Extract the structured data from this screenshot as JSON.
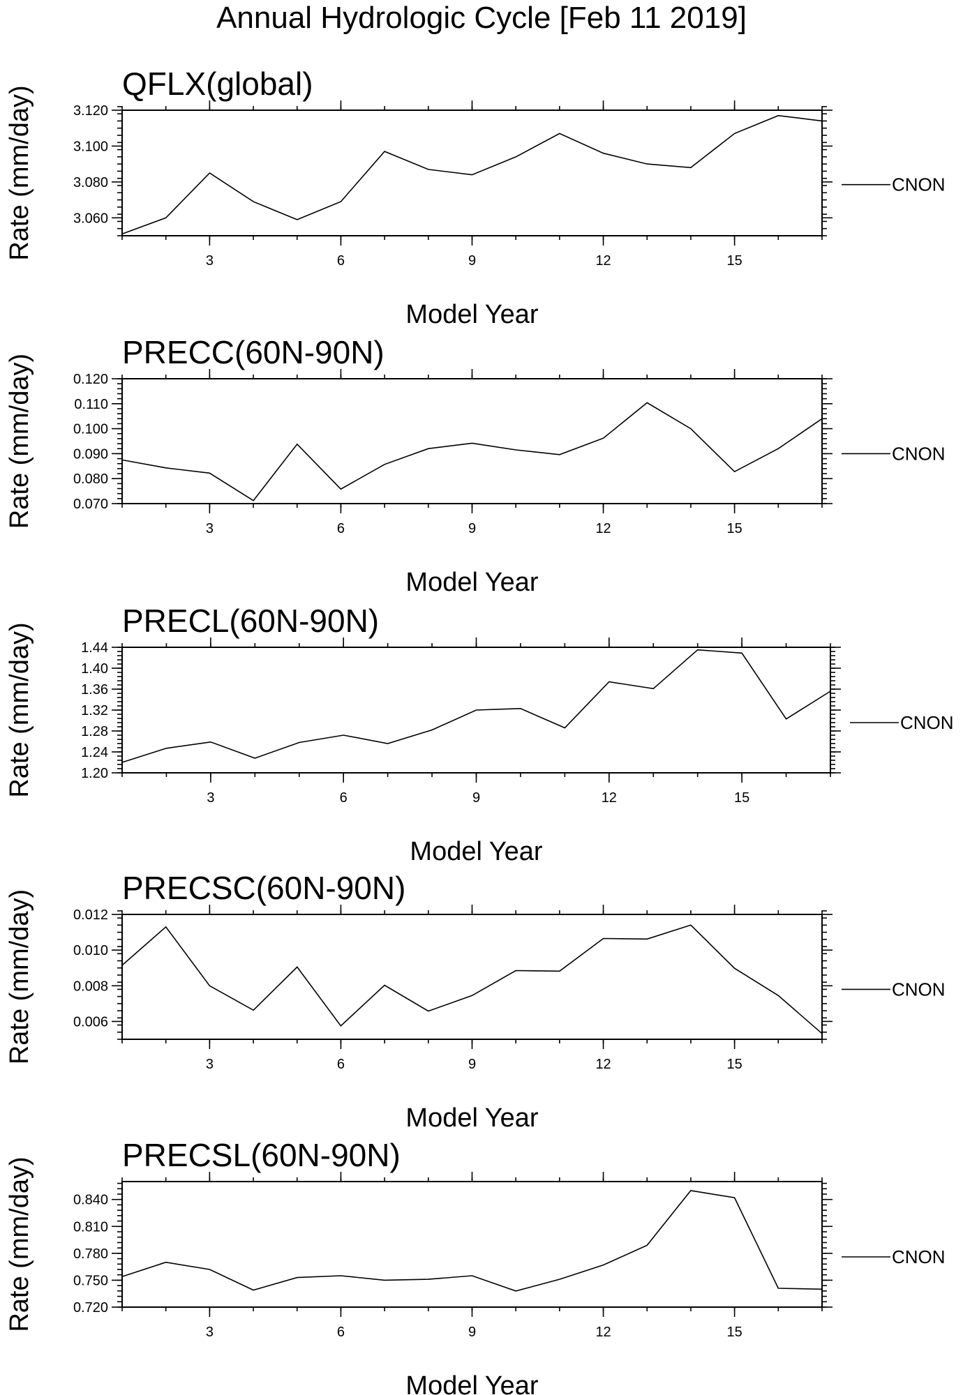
{
  "figure": {
    "title": "Annual Hydrologic Cycle [Feb 11 2019]"
  },
  "chart_data": [
    {
      "type": "line",
      "title": "QFLX(global)",
      "xlabel": "Model Year",
      "ylabel": "Rate (mm/day)",
      "x": [
        1,
        2,
        3,
        4,
        5,
        6,
        7,
        8,
        9,
        10,
        11,
        12,
        13,
        14,
        15,
        16,
        17
      ],
      "xlim": [
        1,
        17
      ],
      "ylim": [
        3.05,
        3.12
      ],
      "yticks": [
        3.06,
        3.08,
        3.1,
        3.12
      ],
      "ytick_labels": [
        "3.060",
        "3.080",
        "3.100",
        "3.120"
      ],
      "xticks": [
        3,
        6,
        9,
        12,
        15
      ],
      "xtick_labels": [
        "3",
        "6",
        "9",
        "12",
        "15"
      ],
      "grid": false,
      "legend_placement": "right",
      "legend_value": 3.0785,
      "series": [
        {
          "name": "CNON",
          "values": [
            3.051,
            3.06,
            3.085,
            3.069,
            3.059,
            3.069,
            3.097,
            3.087,
            3.084,
            3.094,
            3.107,
            3.096,
            3.09,
            3.088,
            3.107,
            3.117,
            3.114
          ]
        }
      ]
    },
    {
      "type": "line",
      "title": "PRECC(60N-90N)",
      "xlabel": "Model Year",
      "ylabel": "Rate (mm/day)",
      "x": [
        1,
        2,
        3,
        4,
        5,
        6,
        7,
        8,
        9,
        10,
        11,
        12,
        13,
        14,
        15,
        16,
        17
      ],
      "xlim": [
        1,
        17
      ],
      "ylim": [
        0.07,
        0.12
      ],
      "yticks": [
        0.07,
        0.08,
        0.09,
        0.1,
        0.11,
        0.12
      ],
      "ytick_labels": [
        "0.070",
        "0.080",
        "0.090",
        "0.100",
        "0.110",
        "0.120"
      ],
      "xticks": [
        3,
        6,
        9,
        12,
        15
      ],
      "xtick_labels": [
        "3",
        "6",
        "9",
        "12",
        "15"
      ],
      "grid": false,
      "legend_placement": "right",
      "legend_value": 0.09,
      "series": [
        {
          "name": "CNON",
          "values": [
            0.0875,
            0.0843,
            0.0822,
            0.0712,
            0.0938,
            0.0758,
            0.0857,
            0.092,
            0.0942,
            0.0915,
            0.0896,
            0.0962,
            0.1104,
            0.1,
            0.0828,
            0.092,
            0.104
          ]
        }
      ]
    },
    {
      "type": "line",
      "title": "PRECL(60N-90N)",
      "xlabel": "Model Year",
      "ylabel": "Rate (mm/day)",
      "x": [
        1,
        2,
        3,
        4,
        5,
        6,
        7,
        8,
        9,
        10,
        11,
        12,
        13,
        14,
        15,
        16,
        17
      ],
      "xlim": [
        1,
        17
      ],
      "ylim": [
        1.2,
        1.44
      ],
      "yticks": [
        1.2,
        1.24,
        1.28,
        1.32,
        1.36,
        1.4,
        1.44
      ],
      "ytick_labels": [
        "1.20",
        "1.24",
        "1.28",
        "1.32",
        "1.36",
        "1.40",
        "1.44"
      ],
      "xticks": [
        3,
        6,
        9,
        12,
        15
      ],
      "xtick_labels": [
        "3",
        "6",
        "9",
        "12",
        "15"
      ],
      "grid": false,
      "legend_placement": "right",
      "legend_value": 1.296,
      "series": [
        {
          "name": "CNON",
          "values": [
            1.22,
            1.247,
            1.259,
            1.228,
            1.258,
            1.272,
            1.256,
            1.282,
            1.32,
            1.323,
            1.286,
            1.374,
            1.361,
            1.435,
            1.429,
            1.303,
            1.356
          ]
        }
      ]
    },
    {
      "type": "line",
      "title": "PRECSC(60N-90N)",
      "xlabel": "Model Year",
      "ylabel": "Rate (mm/day)",
      "x": [
        1,
        2,
        3,
        4,
        5,
        6,
        7,
        8,
        9,
        10,
        11,
        12,
        13,
        14,
        15,
        16,
        17
      ],
      "xlim": [
        1,
        17
      ],
      "ylim": [
        0.005,
        0.012
      ],
      "yticks": [
        0.006,
        0.008,
        0.01,
        0.012
      ],
      "ytick_labels": [
        "0.006",
        "0.008",
        "0.010",
        "0.012"
      ],
      "xticks": [
        3,
        6,
        9,
        12,
        15
      ],
      "xtick_labels": [
        "3",
        "6",
        "9",
        "12",
        "15"
      ],
      "grid": false,
      "legend_placement": "right",
      "legend_value": 0.0078,
      "series": [
        {
          "name": "CNON",
          "values": [
            0.00915,
            0.0113,
            0.008,
            0.00663,
            0.00905,
            0.00575,
            0.00803,
            0.00658,
            0.00745,
            0.00885,
            0.00882,
            0.01065,
            0.01062,
            0.0114,
            0.00898,
            0.00745,
            0.00532
          ]
        }
      ]
    },
    {
      "type": "line",
      "title": "PRECSL(60N-90N)",
      "xlabel": "Model Year",
      "ylabel": "Rate (mm/day)",
      "x": [
        1,
        2,
        3,
        4,
        5,
        6,
        7,
        8,
        9,
        10,
        11,
        12,
        13,
        14,
        15,
        16,
        17
      ],
      "xlim": [
        1,
        17
      ],
      "ylim": [
        0.72,
        0.86
      ],
      "yticks": [
        0.72,
        0.75,
        0.78,
        0.81,
        0.84
      ],
      "ytick_labels": [
        "0.720",
        "0.750",
        "0.780",
        "0.810",
        "0.840"
      ],
      "xticks": [
        3,
        6,
        9,
        12,
        15
      ],
      "xtick_labels": [
        "3",
        "6",
        "9",
        "12",
        "15"
      ],
      "grid": false,
      "legend_placement": "right",
      "legend_value": 0.776,
      "series": [
        {
          "name": "CNON",
          "values": [
            0.754,
            0.77,
            0.762,
            0.739,
            0.753,
            0.755,
            0.75,
            0.751,
            0.755,
            0.738,
            0.751,
            0.767,
            0.789,
            0.85,
            0.842,
            0.741,
            0.74
          ]
        }
      ]
    }
  ]
}
